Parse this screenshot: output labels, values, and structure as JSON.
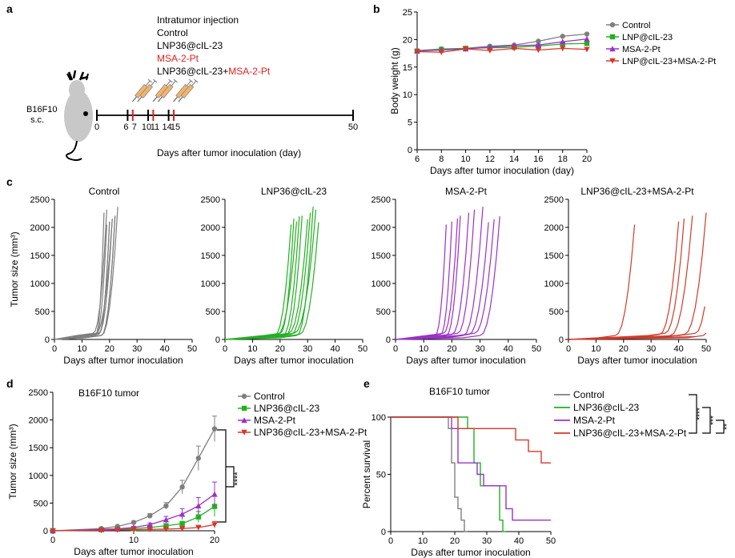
{
  "colors": {
    "control": "#7f7f7f",
    "lnp": "#22b022",
    "msa": "#9b30c9",
    "combo": "#d23a2a",
    "red_text": "#e02020"
  },
  "panel_a": {
    "panel_label": "a",
    "injection_title": "Intratumor injection",
    "groups": [
      "Control",
      "LNP36@cIL-23"
    ],
    "msa_label": "MSA-2-Pt",
    "combo_prefix": "LNP36@cIL-23+",
    "combo_suffix": "MSA-2-Pt",
    "model_line1": "B16F10",
    "model_line2": "s.c.",
    "ticks": [
      "0",
      "6",
      "7",
      "10",
      "11",
      "14",
      "15",
      "50"
    ],
    "axis_label": "Days after tumor inoculation (day)"
  },
  "chart_data": [
    {
      "panel": "b",
      "type": "line",
      "xlabel": "Days after tumor inoculation (day)",
      "ylabel": "Body weight (g)",
      "xlim": [
        6,
        20
      ],
      "ylim": [
        0,
        25
      ],
      "xticks": [
        6,
        8,
        10,
        12,
        14,
        16,
        18,
        20
      ],
      "yticks": [
        0,
        5,
        10,
        15,
        20,
        25
      ],
      "legend_position": "top-right",
      "x": [
        6,
        8,
        10,
        12,
        14,
        16,
        18,
        20
      ],
      "series": [
        {
          "name": "Control",
          "color": "#7f7f7f",
          "marker": "circle",
          "values": [
            18.0,
            18.3,
            18.4,
            18.8,
            19.0,
            19.7,
            20.6,
            21.0
          ]
        },
        {
          "name": "LNP@cIL-23",
          "color": "#22b022",
          "marker": "square",
          "values": [
            17.9,
            18.2,
            18.4,
            18.5,
            18.6,
            18.8,
            19.2,
            19.3
          ]
        },
        {
          "name": "MSA-2-Pt",
          "color": "#9b30c9",
          "marker": "triangle",
          "values": [
            17.9,
            18.1,
            18.3,
            18.6,
            18.9,
            19.0,
            19.6,
            20.1
          ]
        },
        {
          "name": "LNP@cIL-23+MSA-2-Pt",
          "color": "#d23a2a",
          "marker": "triangle-down",
          "values": [
            17.8,
            17.7,
            18.3,
            18.0,
            18.4,
            18.1,
            18.4,
            18.2
          ]
        }
      ]
    },
    {
      "panel": "c",
      "type": "line",
      "ylabel": "Tumor size (mm³)",
      "xlabel": "Days after tumor inoculation",
      "xlim": [
        0,
        50
      ],
      "ylim": [
        0,
        2500
      ],
      "xticks": [
        0,
        10,
        20,
        30,
        40,
        50
      ],
      "yticks": [
        0,
        500,
        1000,
        1500,
        2000,
        2500
      ],
      "subplots": [
        {
          "title": "Control",
          "color": "#7f7f7f",
          "curves": [
            [
              15,
              19
            ],
            [
              16,
              20
            ],
            [
              16,
              21
            ],
            [
              17,
              22
            ],
            [
              15,
              18
            ],
            [
              14,
              19
            ],
            [
              17,
              23
            ],
            [
              16,
              20
            ],
            [
              15,
              21
            ],
            [
              17,
              22
            ]
          ]
        },
        {
          "title": "LNP36@cIL-23",
          "color": "#22b022",
          "curves": [
            [
              18,
              24
            ],
            [
              19,
              26
            ],
            [
              20,
              25
            ],
            [
              22,
              28
            ],
            [
              24,
              31
            ],
            [
              25,
              33
            ],
            [
              26,
              32
            ],
            [
              27,
              34
            ],
            [
              23,
              30
            ],
            [
              21,
              27
            ]
          ]
        },
        {
          "title": "MSA-2-Pt",
          "color": "#9b30c9",
          "curves": [
            [
              14,
              18
            ],
            [
              16,
              20
            ],
            [
              17,
              22
            ],
            [
              18,
              23
            ],
            [
              20,
              26
            ],
            [
              22,
              28
            ],
            [
              24,
              31
            ],
            [
              26,
              33
            ],
            [
              28,
              35
            ],
            [
              30,
              37
            ]
          ]
        },
        {
          "title": "LNP36@cIL-23+MSA-2-Pt",
          "color": "#d23a2a",
          "curves": [
            [
              17,
              24
            ],
            [
              33,
              40
            ],
            [
              35,
              42
            ],
            [
              37,
              45
            ],
            [
              42,
              50
            ],
            [
              46,
              53
            ],
            [
              49,
              55
            ],
            [
              52,
              58
            ]
          ]
        }
      ]
    },
    {
      "panel": "d",
      "type": "line",
      "title": "B16F10 tumor",
      "xlabel": "Days after tumor inoculation",
      "ylabel": "Tumor size (mm³)",
      "xlim": [
        0,
        20
      ],
      "ylim": [
        0,
        2500
      ],
      "xticks": [
        0,
        10,
        20
      ],
      "yticks": [
        0,
        500,
        1000,
        1500,
        2000,
        2500
      ],
      "legend_position": "right",
      "x": [
        0,
        6,
        8,
        10,
        12,
        14,
        16,
        18,
        20
      ],
      "series": [
        {
          "name": "Control",
          "color": "#7f7f7f",
          "marker": "circle",
          "values": [
            0,
            40,
            80,
            150,
            270,
            450,
            790,
            1310,
            1840
          ],
          "errors": [
            0,
            10,
            15,
            25,
            40,
            60,
            120,
            220,
            230
          ]
        },
        {
          "name": "LNP36@cIL-23",
          "color": "#22b022",
          "marker": "square",
          "values": [
            0,
            20,
            30,
            40,
            60,
            90,
            130,
            250,
            440
          ],
          "errors": [
            0,
            5,
            5,
            10,
            15,
            25,
            40,
            100,
            180
          ]
        },
        {
          "name": "MSA-2-Pt",
          "color": "#9b30c9",
          "marker": "triangle",
          "values": [
            0,
            25,
            35,
            60,
            110,
            200,
            300,
            450,
            660
          ],
          "errors": [
            0,
            5,
            10,
            15,
            30,
            60,
            100,
            150,
            220
          ]
        },
        {
          "name": "LNP36@cIL-23+MSA-2-Pt",
          "color": "#d23a2a",
          "marker": "triangle-down",
          "values": [
            0,
            10,
            15,
            20,
            25,
            30,
            40,
            60,
            110
          ],
          "errors": [
            0,
            3,
            5,
            5,
            8,
            10,
            15,
            25,
            60
          ]
        }
      ],
      "significance": "****"
    },
    {
      "panel": "e",
      "type": "line",
      "title": "B16F10 tumor",
      "xlabel": "Days after tumor inoculation",
      "ylabel": "Percent survival",
      "xlim": [
        0,
        50
      ],
      "ylim": [
        0,
        100
      ],
      "xticks": [
        0,
        10,
        20,
        30,
        40,
        50
      ],
      "yticks": [
        0,
        50,
        100
      ],
      "legend_position": "top-right",
      "series": [
        {
          "name": "Control",
          "color": "#7f7f7f",
          "steps": [
            [
              0,
              100
            ],
            [
              18,
              100
            ],
            [
              18,
              90
            ],
            [
              19,
              90
            ],
            [
              19,
              60
            ],
            [
              20,
              60
            ],
            [
              20,
              30
            ],
            [
              21,
              30
            ],
            [
              21,
              20
            ],
            [
              22,
              20
            ],
            [
              22,
              10
            ],
            [
              23,
              10
            ],
            [
              23,
              0
            ],
            [
              24,
              0
            ]
          ]
        },
        {
          "name": "LNP36@cIL-23",
          "color": "#22b022",
          "steps": [
            [
              0,
              100
            ],
            [
              24,
              100
            ],
            [
              24,
              90
            ],
            [
              26,
              90
            ],
            [
              26,
              60
            ],
            [
              28,
              60
            ],
            [
              28,
              40
            ],
            [
              34,
              40
            ],
            [
              34,
              10
            ],
            [
              35,
              10
            ],
            [
              35,
              0
            ],
            [
              36,
              0
            ]
          ]
        },
        {
          "name": "MSA-2-Pt",
          "color": "#9b30c9",
          "steps": [
            [
              0,
              100
            ],
            [
              19,
              100
            ],
            [
              19,
              90
            ],
            [
              21,
              90
            ],
            [
              21,
              60
            ],
            [
              27,
              60
            ],
            [
              27,
              50
            ],
            [
              29,
              50
            ],
            [
              29,
              40
            ],
            [
              36,
              40
            ],
            [
              36,
              20
            ],
            [
              38,
              20
            ],
            [
              38,
              10
            ],
            [
              50,
              10
            ]
          ]
        },
        {
          "name": "LNP36@cIL-23+MSA-2-Pt",
          "color": "#d23a2a",
          "steps": [
            [
              0,
              100
            ],
            [
              21,
              100
            ],
            [
              21,
              90
            ],
            [
              39,
              90
            ],
            [
              39,
              80
            ],
            [
              43,
              80
            ],
            [
              43,
              70
            ],
            [
              47,
              70
            ],
            [
              47,
              60
            ],
            [
              50,
              60
            ]
          ]
        }
      ],
      "significance": [
        "****",
        "***",
        "**"
      ]
    }
  ],
  "labels": {
    "b": "b",
    "c": "c",
    "d": "d",
    "e": "e"
  }
}
